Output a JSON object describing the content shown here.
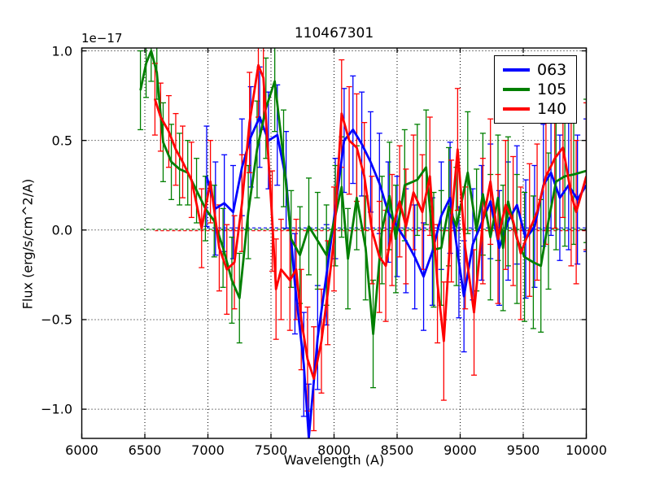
{
  "figure": {
    "title": "110467301",
    "xlabel": "Wavelength (A)",
    "ylabel": "Flux (erg/s/cm^2/A)",
    "offset_label": "1e−17",
    "background_color": "#ffffff",
    "grid": true,
    "xlim": [
      6000,
      10000
    ],
    "ylim": [
      -1.163,
      1.016
    ],
    "x_ticks": [
      {
        "v": 6000,
        "label": "6000"
      },
      {
        "v": 6500,
        "label": "6500"
      },
      {
        "v": 7000,
        "label": "7000"
      },
      {
        "v": 7500,
        "label": "7500"
      },
      {
        "v": 8000,
        "label": "8000"
      },
      {
        "v": 8500,
        "label": "8500"
      },
      {
        "v": 9000,
        "label": "9000"
      },
      {
        "v": 9500,
        "label": "9500"
      },
      {
        "v": 10000,
        "label": "10000"
      }
    ],
    "y_ticks": [
      {
        "v": 1.0,
        "label": "1.0"
      },
      {
        "v": 0.5,
        "label": "0.5"
      },
      {
        "v": 0.0,
        "label": "0.0"
      },
      {
        "v": -0.5,
        "label": "−0.5"
      },
      {
        "v": -1.0,
        "label": "−1.0"
      }
    ]
  },
  "legend": {
    "position": "upper right",
    "items": [
      {
        "label": "063",
        "color": "#0000ff"
      },
      {
        "label": "105",
        "color": "#007f00"
      },
      {
        "label": "140",
        "color": "#ff0000"
      }
    ]
  },
  "chart_data": {
    "type": "line",
    "title": "110467301",
    "xlabel": "Wavelength (A)",
    "ylabel": "Flux (erg/s/cm^2/A)",
    "y_scale_factor": "1e-17",
    "xlim": [
      6000,
      10000
    ],
    "ylim": [
      -1.163,
      1.016
    ],
    "grid": "dotted black at major ticks",
    "error_bars": true,
    "series": [
      {
        "name": "063",
        "color": "#0000ff",
        "x": [
          6990,
          7060,
          7130,
          7200,
          7270,
          7340,
          7410,
          7480,
          7550,
          7620,
          7690,
          7760,
          7800,
          7870,
          7940,
          8010,
          8080,
          8150,
          8220,
          8290,
          8360,
          8430,
          8500,
          8570,
          8640,
          8710,
          8780,
          8850,
          8920,
          8990,
          9030,
          9100,
          9170,
          9240,
          9310,
          9380,
          9450,
          9520,
          9590,
          9660,
          9720,
          9790,
          9860,
          9930,
          10000
        ],
        "y": [
          0.3,
          0.12,
          0.15,
          0.1,
          0.35,
          0.52,
          0.63,
          0.5,
          0.53,
          0.28,
          -0.3,
          -0.75,
          -1.16,
          -0.6,
          -0.25,
          0.12,
          0.5,
          0.56,
          0.48,
          0.38,
          0.26,
          0.1,
          0.02,
          -0.06,
          -0.15,
          -0.26,
          -0.12,
          0.08,
          0.18,
          -0.18,
          -0.37,
          -0.08,
          0.04,
          0.16,
          -0.1,
          0.05,
          0.14,
          -0.05,
          0.02,
          0.25,
          0.32,
          0.18,
          0.25,
          0.17,
          0.25
        ],
        "yerr": [
          0.28,
          0.26,
          0.27,
          0.26,
          0.27,
          0.28,
          0.28,
          0.27,
          0.28,
          0.27,
          0.28,
          0.29,
          0.3,
          0.29,
          0.28,
          0.28,
          0.29,
          0.3,
          0.29,
          0.28,
          0.28,
          0.28,
          0.28,
          0.29,
          0.29,
          0.3,
          0.3,
          0.3,
          0.31,
          0.31,
          0.31,
          0.31,
          0.32,
          0.32,
          0.32,
          0.33,
          0.33,
          0.33,
          0.34,
          0.34,
          0.35,
          0.35,
          0.36,
          0.36,
          0.37
        ]
      },
      {
        "name": "105",
        "color": "#007f00",
        "x": [
          6465,
          6510,
          6550,
          6595,
          6645,
          6710,
          6775,
          6840,
          6910,
          6980,
          7050,
          7120,
          7190,
          7250,
          7320,
          7390,
          7460,
          7530,
          7600,
          7660,
          7730,
          7800,
          7870,
          7940,
          8010,
          8060,
          8110,
          8180,
          8250,
          8310,
          8380,
          8440,
          8490,
          8560,
          8660,
          8730,
          8790,
          8850,
          8910,
          8970,
          9060,
          9130,
          9180,
          9240,
          9300,
          9340,
          9380,
          9450,
          9510,
          9580,
          9640,
          9700,
          9760,
          9830,
          9900,
          10000
        ],
        "y": [
          0.78,
          0.93,
          1.0,
          0.88,
          0.49,
          0.38,
          0.34,
          0.32,
          0.22,
          0.12,
          0.05,
          -0.1,
          -0.28,
          -0.38,
          0.1,
          0.45,
          0.68,
          0.83,
          0.4,
          -0.05,
          -0.14,
          0.02,
          -0.06,
          -0.14,
          0.08,
          0.24,
          -0.16,
          0.18,
          -0.1,
          -0.58,
          0.0,
          0.19,
          -0.05,
          0.25,
          0.28,
          0.35,
          -0.11,
          -0.1,
          0.13,
          0.02,
          0.32,
          0.0,
          0.2,
          -0.04,
          0.18,
          -0.1,
          0.16,
          -0.05,
          -0.15,
          -0.18,
          -0.2,
          0.05,
          0.27,
          0.3,
          0.31,
          0.33
        ],
        "yerr": [
          0.22,
          0.19,
          0.17,
          0.15,
          0.22,
          0.21,
          0.2,
          0.18,
          0.18,
          0.18,
          0.2,
          0.22,
          0.24,
          0.25,
          0.26,
          0.27,
          0.28,
          0.28,
          0.27,
          0.27,
          0.27,
          0.27,
          0.27,
          0.28,
          0.28,
          0.28,
          0.28,
          0.29,
          0.29,
          0.3,
          0.3,
          0.3,
          0.3,
          0.31,
          0.31,
          0.32,
          0.32,
          0.32,
          0.33,
          0.33,
          0.34,
          0.34,
          0.34,
          0.35,
          0.35,
          0.35,
          0.36,
          0.36,
          0.36,
          0.37,
          0.37,
          0.38,
          0.38,
          0.39,
          0.39,
          0.4
        ]
      },
      {
        "name": "140",
        "color": "#ff0000",
        "x": [
          6580,
          6625,
          6690,
          6745,
          6800,
          6870,
          6950,
          7020,
          7090,
          7150,
          7210,
          7270,
          7330,
          7400,
          7440,
          7510,
          7540,
          7580,
          7650,
          7700,
          7740,
          7790,
          7840,
          7900,
          7950,
          8000,
          8060,
          8120,
          8180,
          8240,
          8300,
          8360,
          8410,
          8460,
          8520,
          8570,
          8630,
          8700,
          8760,
          8820,
          8870,
          8930,
          8980,
          9040,
          9110,
          9180,
          9240,
          9300,
          9360,
          9420,
          9480,
          9550,
          9610,
          9680,
          9750,
          9815,
          9880,
          9920,
          10000
        ],
        "y": [
          0.73,
          0.63,
          0.55,
          0.45,
          0.38,
          0.28,
          0.01,
          0.27,
          -0.1,
          -0.22,
          -0.18,
          0.15,
          0.6,
          0.92,
          0.85,
          0.05,
          -0.33,
          -0.22,
          -0.28,
          -0.22,
          -0.5,
          -0.72,
          -0.83,
          -0.62,
          -0.35,
          -0.05,
          0.65,
          0.5,
          0.46,
          0.3,
          0.0,
          -0.15,
          -0.2,
          0.0,
          0.16,
          0.02,
          0.21,
          0.1,
          0.3,
          -0.3,
          -0.62,
          0.05,
          0.45,
          -0.1,
          -0.46,
          0.05,
          0.27,
          -0.05,
          0.14,
          0.05,
          -0.13,
          0.0,
          0.1,
          0.3,
          0.4,
          0.46,
          0.2,
          0.1,
          0.3
        ],
        "yerr": [
          0.2,
          0.19,
          0.2,
          0.2,
          0.2,
          0.21,
          0.22,
          0.23,
          0.24,
          0.25,
          0.26,
          0.27,
          0.28,
          0.29,
          0.29,
          0.28,
          0.28,
          0.28,
          0.28,
          0.28,
          0.28,
          0.29,
          0.29,
          0.29,
          0.29,
          0.29,
          0.3,
          0.3,
          0.3,
          0.3,
          0.3,
          0.31,
          0.31,
          0.31,
          0.31,
          0.32,
          0.32,
          0.32,
          0.33,
          0.33,
          0.33,
          0.34,
          0.34,
          0.34,
          0.35,
          0.35,
          0.35,
          0.36,
          0.36,
          0.36,
          0.37,
          0.37,
          0.38,
          0.38,
          0.39,
          0.39,
          0.4,
          0.4,
          0.41
        ]
      }
    ],
    "baselines": [
      {
        "series": "063",
        "color": "#0000ff",
        "y": 0.012,
        "x1": 6990,
        "x2": 10000,
        "style": "dashed"
      },
      {
        "series": "105",
        "color": "#007f00",
        "y": 0.004,
        "x1": 6465,
        "x2": 10000,
        "style": "dashed"
      },
      {
        "series": "140",
        "color": "#ff0000",
        "y": -0.004,
        "x1": 6580,
        "x2": 10000,
        "style": "dashed"
      }
    ]
  }
}
